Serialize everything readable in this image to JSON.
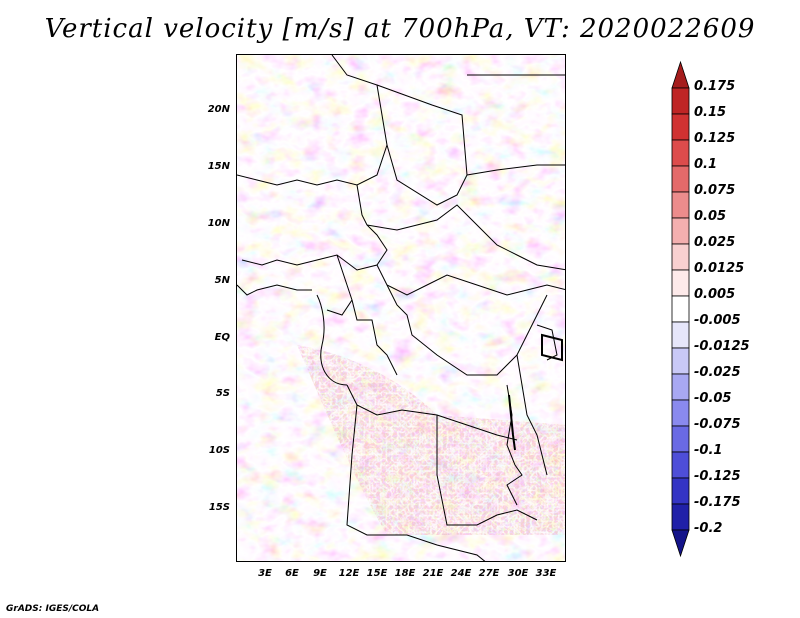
{
  "title": "Vertical velocity [m/s] at 700hPa, VT: 2020022609",
  "credit": "GrADS: IGES/COLA",
  "map": {
    "lat_labels": [
      "20N",
      "15N",
      "10N",
      "5N",
      "EQ",
      "5S",
      "10S",
      "15S"
    ],
    "lon_labels": [
      "3E",
      "6E",
      "9E",
      "12E",
      "15E",
      "18E",
      "21E",
      "24E",
      "27E",
      "30E",
      "33E"
    ]
  },
  "colorbar": {
    "levels": [
      "0.175",
      "0.15",
      "0.125",
      "0.1",
      "0.075",
      "0.05",
      "0.025",
      "0.0125",
      "0.005",
      "-0.005",
      "-0.0125",
      "-0.025",
      "-0.05",
      "-0.075",
      "-0.1",
      "-0.125",
      "-0.175",
      "-0.2"
    ],
    "colors": [
      "#a51c1c",
      "#bf2525",
      "#d03232",
      "#dd4c4c",
      "#e46a6a",
      "#ec8c8c",
      "#f3afaf",
      "#f8d0d0",
      "#fdeaea",
      "#ffffff",
      "#e6e6fa",
      "#c9c9f7",
      "#a8a8f2",
      "#8a8aee",
      "#6a6ae4",
      "#4e4ed8",
      "#3434c4",
      "#2020a8",
      "#14148a"
    ]
  }
}
